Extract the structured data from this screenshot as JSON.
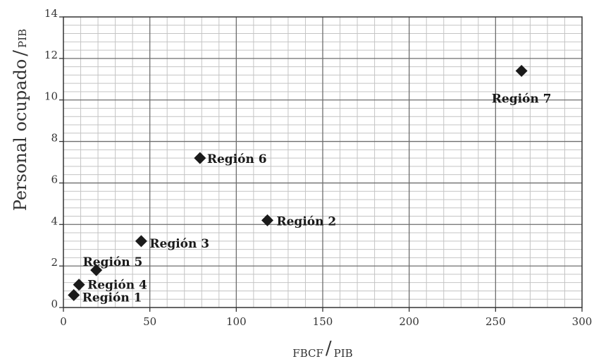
{
  "chart_data": {
    "type": "scatter",
    "title": "",
    "xlabel_main": "FBCF",
    "xlabel_sub": "PIB",
    "ylabel_main": "Personal ocupado",
    "ylabel_sub": "PIB",
    "xlim": [
      0,
      300
    ],
    "ylim": [
      0,
      14
    ],
    "xticks": [
      "0",
      "50",
      "100",
      "150",
      "200",
      "250",
      "300"
    ],
    "yticks": [
      "0",
      "2",
      "4",
      "6",
      "8",
      "10",
      "12",
      "14"
    ],
    "grid": true,
    "points": [
      {
        "label": "Región 1",
        "x": 6,
        "y": 0.6
      },
      {
        "label": "Región 4",
        "x": 9,
        "y": 1.1
      },
      {
        "label": "Región 5",
        "x": 19,
        "y": 1.8
      },
      {
        "label": "Región 3",
        "x": 45,
        "y": 3.2
      },
      {
        "label": "Región 6",
        "x": 79,
        "y": 7.2
      },
      {
        "label": "Región 2",
        "x": 118,
        "y": 4.2
      },
      {
        "label": "Región 7",
        "x": 265,
        "y": 11.4
      }
    ],
    "marker": "diamond",
    "marker_color": "#1a1a1a"
  }
}
